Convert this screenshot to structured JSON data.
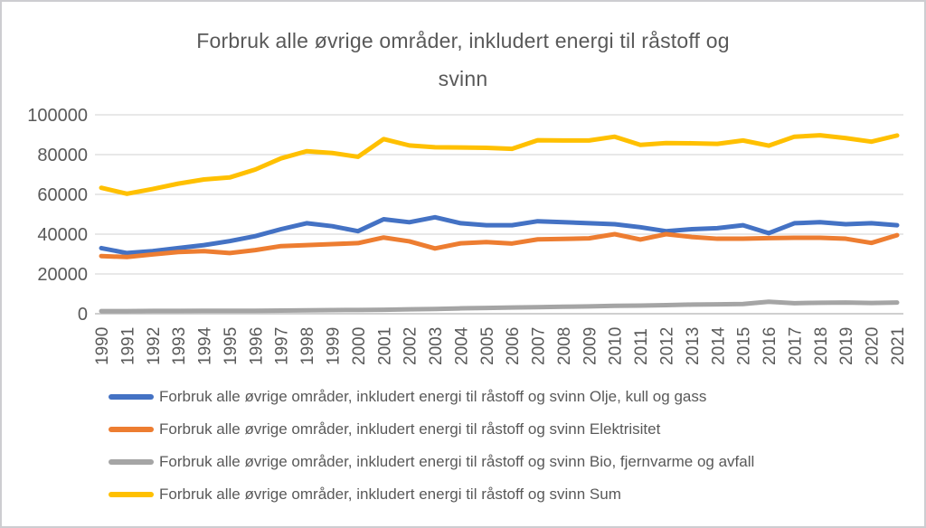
{
  "chart_data": {
    "type": "line",
    "title": "Forbruk alle øvrige områder, inkludert energi til råstoff og svinn",
    "title_lines": [
      "Forbruk alle øvrige områder, inkludert energi til råstoff og",
      "svinn"
    ],
    "x": [
      1990,
      1991,
      1992,
      1993,
      1994,
      1995,
      1996,
      1997,
      1998,
      1999,
      2000,
      2001,
      2002,
      2003,
      2004,
      2005,
      2006,
      2007,
      2008,
      2009,
      2010,
      2011,
      2012,
      2013,
      2014,
      2015,
      2016,
      2017,
      2018,
      2019,
      2020,
      2021
    ],
    "xlabel": "",
    "ylabel": "",
    "ylim": [
      0,
      100000
    ],
    "yticks": [
      0,
      20000,
      40000,
      60000,
      80000,
      100000
    ],
    "grid": "horizontal-only",
    "legend_position": "bottom-left",
    "colors": {
      "title": "#595959",
      "axis_text": "#595959",
      "gridline": "#d9d9d9",
      "axis_line": "#bfbfbf",
      "frame_border": "#cdcdd1"
    },
    "series": [
      {
        "key": "olje-kull-og-gass",
        "name": "Forbruk alle øvrige områder, inkludert energi til råstoff og svinn Olje, kull og gass",
        "color": "#4472C4",
        "values": [
          33000,
          30500,
          31500,
          33000,
          34500,
          36500,
          39000,
          42500,
          45500,
          44000,
          41500,
          47500,
          46000,
          48500,
          45500,
          44500,
          44500,
          46500,
          46000,
          45500,
          45000,
          43500,
          41500,
          42500,
          43000,
          44500,
          40500,
          45500,
          46000,
          45000,
          45500,
          44500
        ]
      },
      {
        "key": "elektrisitet",
        "name": "Forbruk alle øvrige områder, inkludert energi til råstoff og svinn Elektrisitet",
        "color": "#ED7D31",
        "values": [
          29000,
          28500,
          29800,
          31000,
          31500,
          30500,
          32000,
          34000,
          34500,
          35000,
          35500,
          38300,
          36400,
          32800,
          35400,
          36000,
          35300,
          37400,
          37600,
          37900,
          40000,
          37300,
          40000,
          38600,
          37700,
          37700,
          38000,
          38200,
          38200,
          37700,
          35600,
          39500
        ]
      },
      {
        "key": "bio-fjernvarme-og-avfall",
        "name": "Forbruk alle øvrige områder, inkludert energi til råstoff og svinn Bio, fjernvarme og avfall",
        "color": "#A5A5A5",
        "values": [
          1300,
          1300,
          1400,
          1400,
          1500,
          1500,
          1500,
          1600,
          1700,
          1800,
          1900,
          2000,
          2200,
          2400,
          2700,
          2900,
          3100,
          3300,
          3500,
          3700,
          4000,
          4100,
          4300,
          4600,
          4700,
          4900,
          6000,
          5300,
          5500,
          5600,
          5400,
          5600
        ]
      },
      {
        "key": "sum",
        "name": "Forbruk alle øvrige områder, inkludert energi til råstoff og svinn Sum",
        "color": "#FFC000",
        "values": [
          63300,
          60300,
          62700,
          65400,
          67500,
          68500,
          72500,
          78100,
          81700,
          80800,
          78900,
          87800,
          84600,
          83700,
          83600,
          83400,
          82900,
          87200,
          87100,
          87100,
          89000,
          84900,
          85800,
          85700,
          85400,
          87100,
          84500,
          89000,
          89700,
          88300,
          86500,
          89600
        ]
      }
    ]
  }
}
